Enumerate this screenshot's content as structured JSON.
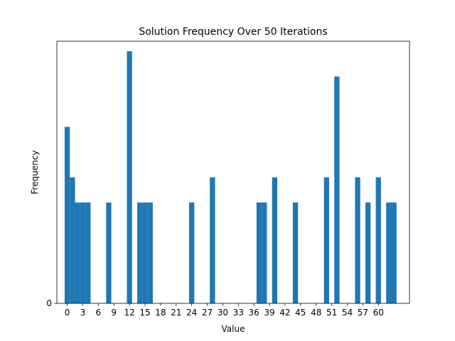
{
  "chart_data": {
    "type": "bar",
    "title": "Solution Frequency Over 50 Iterations",
    "xlabel": "Value",
    "ylabel": "Frequency",
    "xlim": [
      -2,
      66
    ],
    "ylim": [
      0,
      10.4
    ],
    "x_ticks": [
      0,
      3,
      6,
      9,
      12,
      15,
      18,
      21,
      24,
      27,
      30,
      33,
      36,
      39,
      42,
      45,
      48,
      51,
      54,
      57,
      60
    ],
    "y_ticks": [
      0
    ],
    "bar_color": "#1f77b4",
    "grid": false,
    "x": [
      0,
      1,
      2,
      3,
      4,
      8,
      12,
      14,
      15,
      16,
      24,
      28,
      37,
      38,
      40,
      44,
      50,
      52,
      56,
      58,
      60,
      62,
      63
    ],
    "values": [
      7,
      5,
      4,
      4,
      4,
      4,
      10,
      4,
      4,
      4,
      4,
      5,
      4,
      4,
      5,
      4,
      5,
      9,
      5,
      4,
      5,
      4,
      4
    ]
  }
}
